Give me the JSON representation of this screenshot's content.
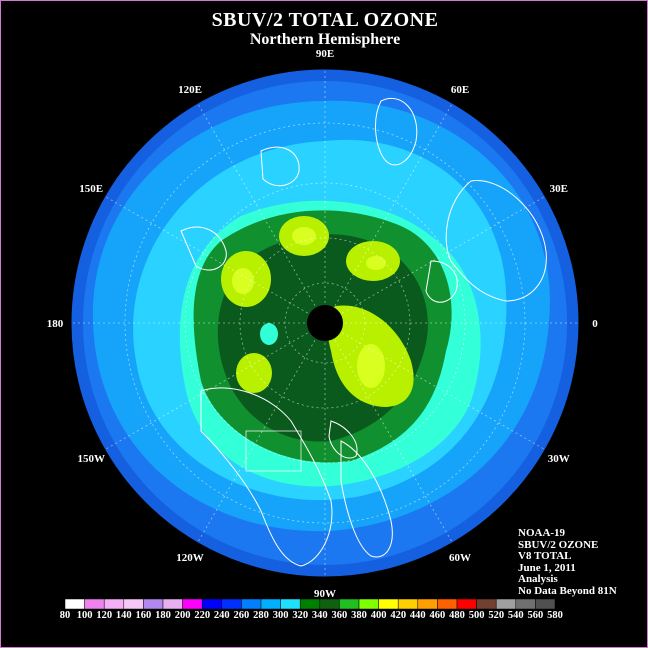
{
  "title": "SBUV/2 TOTAL OZONE",
  "subtitle": "Northern Hemisphere",
  "longitude_labels": [
    {
      "text": "90E",
      "deg": 90
    },
    {
      "text": "60E",
      "deg": 60
    },
    {
      "text": "30E",
      "deg": 30
    },
    {
      "text": "0",
      "deg": 0
    },
    {
      "text": "30W",
      "deg": -30
    },
    {
      "text": "60W",
      "deg": -60
    },
    {
      "text": "90W",
      "deg": -90
    },
    {
      "text": "120W",
      "deg": -120
    },
    {
      "text": "150W",
      "deg": -150
    },
    {
      "text": "180",
      "deg": 180
    },
    {
      "text": "150E",
      "deg": 150
    },
    {
      "text": "120E",
      "deg": 120
    }
  ],
  "info": {
    "satellite": "NOAA-19",
    "instrument": "SBUV/2 OZONE",
    "version": "V8 TOTAL",
    "date": "June 1, 2011",
    "type": "Analysis",
    "note": "No Data Beyond 81N"
  },
  "colorbar": {
    "labels": [
      "80",
      "100",
      "120",
      "140",
      "160",
      "180",
      "200",
      "220",
      "240",
      "260",
      "280",
      "300",
      "320",
      "340",
      "360",
      "380",
      "400",
      "420",
      "440",
      "460",
      "480",
      "500",
      "520",
      "540",
      "560",
      "580"
    ],
    "colors": [
      "#ffffff",
      "#ee82ee",
      "#f5b0f5",
      "#f7c8f7",
      "#b088f0",
      "#e8b0f0",
      "#ff00ff",
      "#0000ff",
      "#0030ff",
      "#0080ff",
      "#00b0ff",
      "#20e0ff",
      "#008000",
      "#106010",
      "#20c020",
      "#80ff00",
      "#ffff00",
      "#ffd000",
      "#ffa000",
      "#ff6000",
      "#ff0000",
      "#704030",
      "#a0a0a0",
      "#707070",
      "#505050"
    ]
  },
  "legend_colors": {
    "outer_low": "#1560f0",
    "c300": "#14a0f8",
    "c320": "#28d0ff",
    "c340": "#30ffd8",
    "c360": "#108830",
    "c380": "#0b5a1e",
    "c400": "#b8f000",
    "c420": "#d8ff20",
    "nodata": "#000000"
  }
}
